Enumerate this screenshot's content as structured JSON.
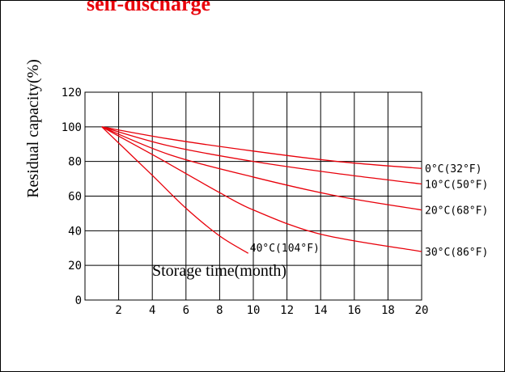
{
  "colors": {
    "curve": "#e8000a",
    "title": "#e8000a",
    "grid": "#000000"
  },
  "chart_data": {
    "type": "line",
    "title": "self-discharge",
    "xlabel": "Storage time(month)",
    "ylabel": "Residual capacity(%)",
    "xlim": [
      0,
      20
    ],
    "ylim": [
      0,
      120
    ],
    "x_ticks": [
      2,
      4,
      6,
      8,
      10,
      12,
      14,
      16,
      18,
      20
    ],
    "y_ticks": [
      0,
      20,
      40,
      60,
      80,
      100,
      120
    ],
    "x_tick_labels": [
      "2",
      "4",
      "6",
      "8",
      "10",
      "12",
      "14",
      "16",
      "18",
      "20"
    ],
    "y_tick_labels": [
      "0",
      "20",
      "40",
      "60",
      "80",
      "100",
      "120"
    ],
    "grid": true,
    "series": [
      {
        "name": "0°C(32°F)",
        "x": [
          1,
          5,
          10,
          15,
          20
        ],
        "y": [
          100,
          93,
          86,
          80,
          76
        ]
      },
      {
        "name": "10°C(50°F)",
        "x": [
          1,
          5,
          10,
          15,
          20
        ],
        "y": [
          100,
          89,
          80,
          73,
          67
        ]
      },
      {
        "name": "20°C(68°F)",
        "x": [
          1,
          5,
          10,
          15,
          20
        ],
        "y": [
          100,
          84,
          71,
          60,
          52
        ]
      },
      {
        "name": "30°C(86°F)",
        "x": [
          1,
          4,
          6,
          8,
          10,
          14,
          20
        ],
        "y": [
          100,
          84,
          73,
          62,
          52,
          38,
          28
        ]
      },
      {
        "name": "40°C(104°F)",
        "x": [
          1,
          4,
          6,
          8,
          9.7
        ],
        "y": [
          100,
          72,
          53,
          37,
          27
        ]
      }
    ]
  }
}
